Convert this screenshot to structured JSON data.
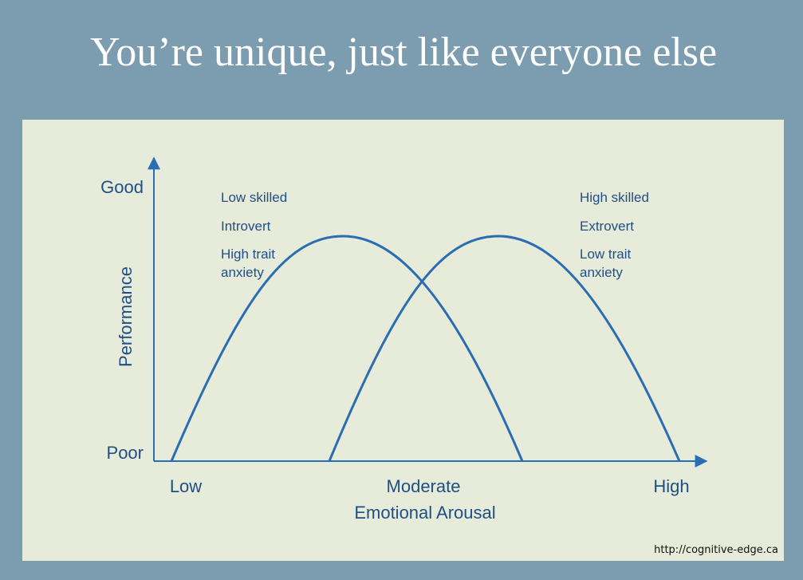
{
  "title": "You’re unique, just like everyone else",
  "diagram": {
    "y_axis": {
      "label": "Performance",
      "top": "Good",
      "bottom": "Poor"
    },
    "x_axis": {
      "label": "Emotional Arousal",
      "ticks": [
        "Low",
        "Moderate",
        "High"
      ]
    },
    "groups": [
      {
        "lines": [
          "Low skilled",
          "Introvert",
          "High trait",
          "anxiety"
        ]
      },
      {
        "lines": [
          "High skilled",
          "Extrovert",
          "Low trait",
          "anxiety"
        ]
      }
    ]
  },
  "source": "http://cognitive-edge.ca"
}
